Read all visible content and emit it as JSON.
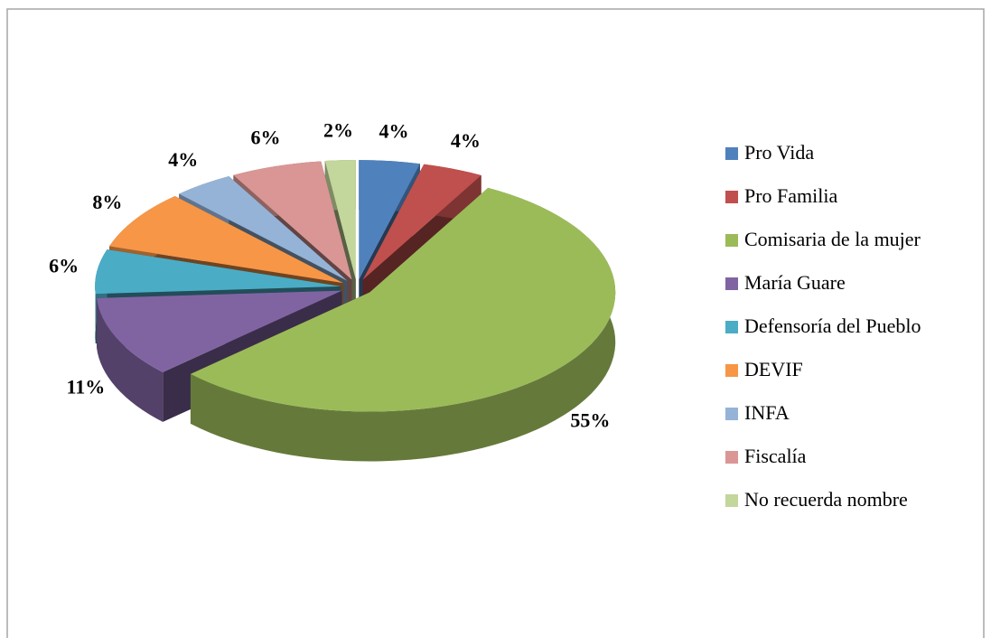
{
  "chart_data": {
    "type": "pie",
    "categories": [
      "Pro Vida",
      "Pro Familia",
      "Comisaria de la mujer",
      "María Guare",
      "Defensoría del Pueblo",
      "DEVIF",
      "INFA",
      "Fiscalía",
      "No recuerda nombre"
    ],
    "values": [
      4,
      4,
      55,
      11,
      6,
      8,
      4,
      6,
      2
    ],
    "value_labels": [
      "4%",
      "4%",
      "55%",
      "11%",
      "6%",
      "8%",
      "4%",
      "6%",
      "2%"
    ],
    "colors": [
      "#4f81bd",
      "#c0504d",
      "#9bbb59",
      "#8064a2",
      "#4bacc6",
      "#f79646",
      "#95b3d7",
      "#d99694",
      "#c3d69b"
    ],
    "legend": "right"
  }
}
